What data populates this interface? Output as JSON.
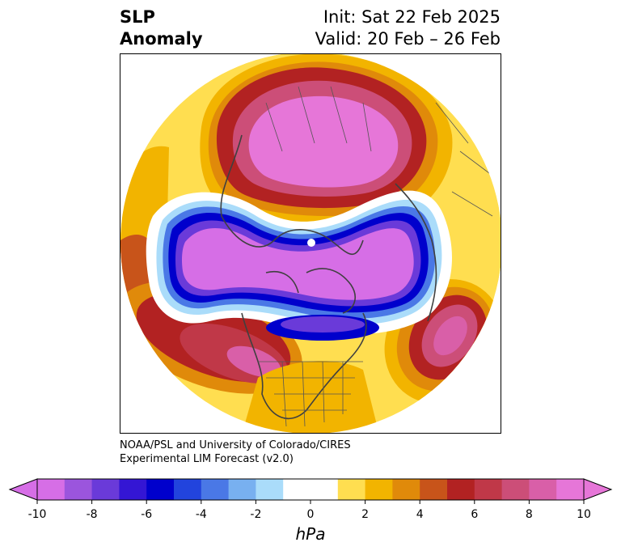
{
  "title": {
    "left_line1": "SLP",
    "left_line2": "Anomaly",
    "right_line1": "Init: Sat 22 Feb 2025",
    "right_line2": "Valid: 20 Feb – 26 Feb"
  },
  "credit": {
    "line1": "NOAA/PSL and University of Colorado/CIRES",
    "line2": "Experimental LIM Forecast (v2.0)"
  },
  "colorbar": {
    "unit": "hPa",
    "tick_labels": [
      "-10",
      "-8",
      "-6",
      "-4",
      "-2",
      "0",
      "2",
      "4",
      "6",
      "8",
      "10"
    ],
    "colors": [
      "#d66ee6",
      "#9b55dd",
      "#6a3ad9",
      "#3416d4",
      "#0000cc",
      "#2244dd",
      "#4a78e6",
      "#78b0f0",
      "#aadcfa",
      "#ffffff",
      "#ffffff",
      "#ffde50",
      "#f2b400",
      "#e08a0a",
      "#c8541a",
      "#b22222",
      "#c03848",
      "#cc4e78",
      "#d95fa8",
      "#e676d8"
    ]
  },
  "map": {
    "projection": "north-polar-stereographic",
    "features": [
      "SLP anomaly filled contours",
      "coastlines",
      "country borders",
      "US state borders"
    ]
  }
}
